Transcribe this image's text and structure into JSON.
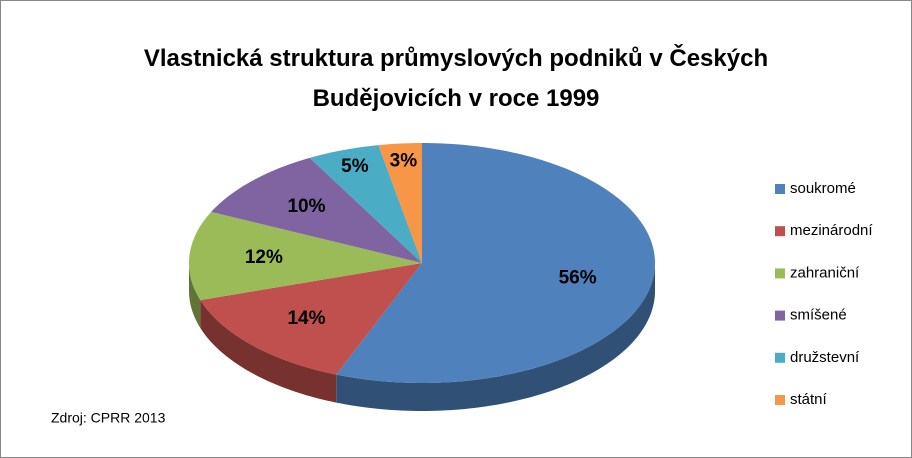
{
  "chart_data": {
    "type": "pie",
    "title": "Vlastnická struktura průmyslových podniků v Českých Budějovicích v roce 1999",
    "categories": [
      "soukromé",
      "mezinárodní",
      "zahraniční",
      "smíšené",
      "družstevní",
      "státní"
    ],
    "values": [
      56,
      14,
      12,
      10,
      5,
      3
    ],
    "value_labels": [
      "56%",
      "14%",
      "12%",
      "10%",
      "5%",
      "3%"
    ],
    "colors": [
      "#4f81bd",
      "#c0504d",
      "#9bbb59",
      "#8064a2",
      "#4bacc6",
      "#f79646"
    ],
    "legend": "right",
    "source": "Zdroj: CPRR 2013"
  }
}
